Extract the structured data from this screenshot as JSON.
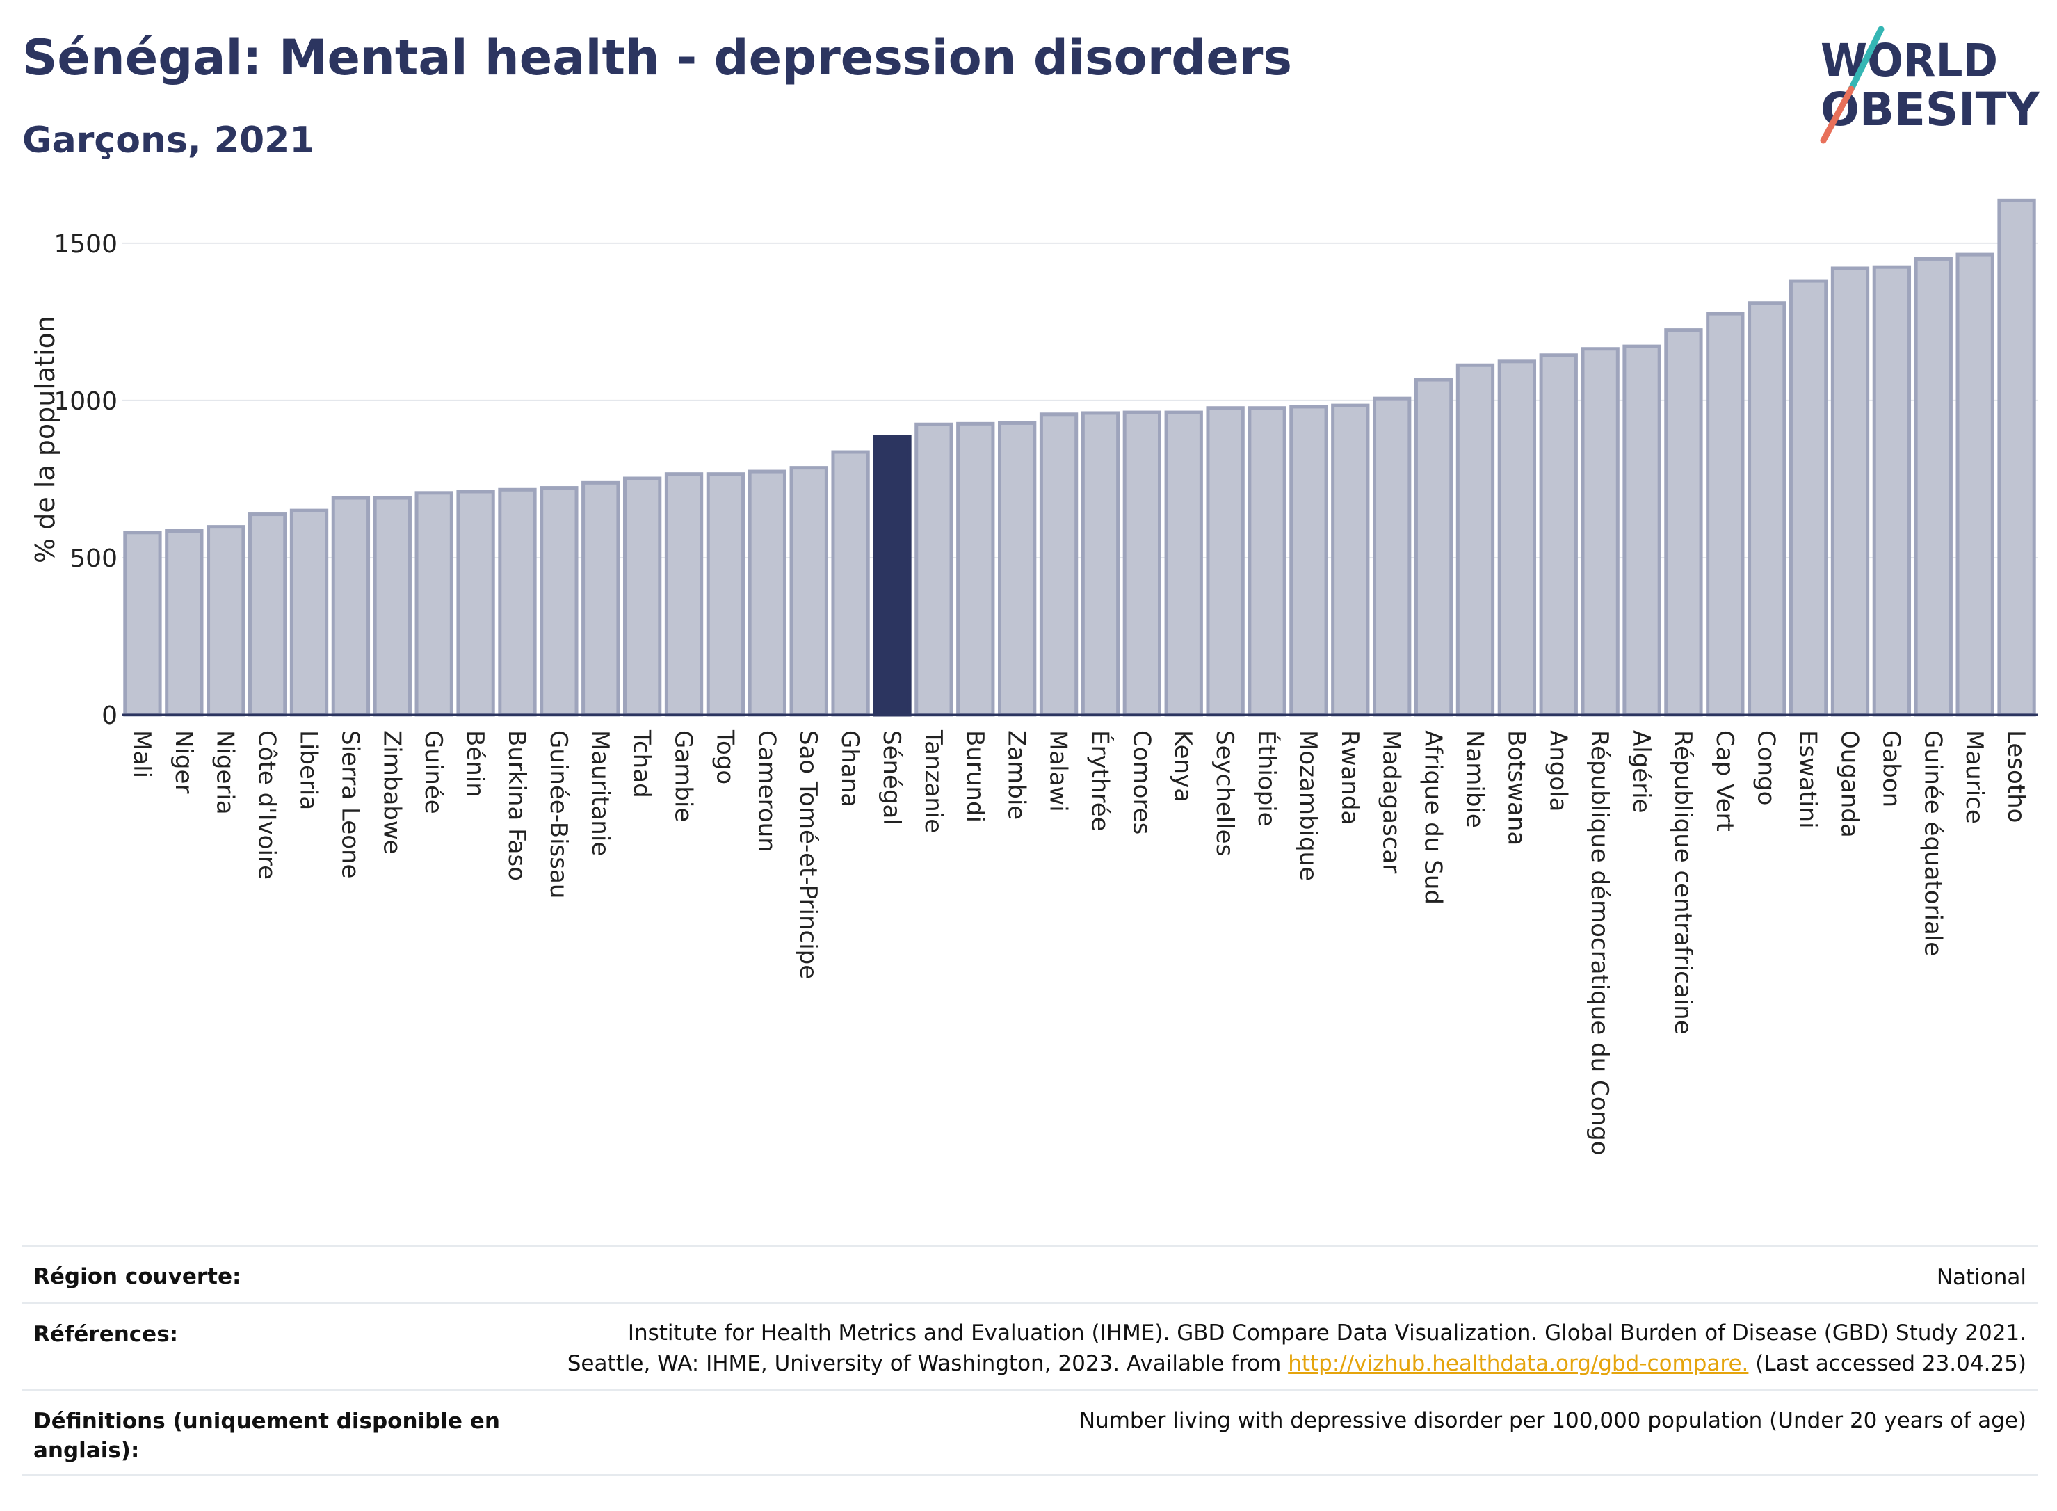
{
  "header": {
    "title": "Sénégal: Mental health - depression disorders",
    "subtitle": "Garçons, 2021",
    "logo_text": "WORLD OBESITY"
  },
  "colors": {
    "bar": "#c0c4d2",
    "bar_edge": "#9ea4bc",
    "highlight": "#2c3560",
    "title": "#2c3560",
    "link": "#e5a40c"
  },
  "chart_data": {
    "type": "bar",
    "ylabel": "% de la population",
    "ylim": [
      0,
      1650
    ],
    "yticks": [
      0,
      500,
      1000,
      1500
    ],
    "grid": true,
    "highlight": "Sénégal",
    "categories": [
      "Mali",
      "Niger",
      "Nigeria",
      "Côte d'Ivoire",
      "Liberia",
      "Sierra Leone",
      "Zimbabwe",
      "Guinée",
      "Bénin",
      "Burkina Faso",
      "Guinée-Bissau",
      "Mauritanie",
      "Tchad",
      "Gambie",
      "Togo",
      "Cameroun",
      "Sao Tomé-et-Principe",
      "Ghana",
      "Sénégal",
      "Tanzanie",
      "Burundi",
      "Zambie",
      "Malawi",
      "Érythrée",
      "Comores",
      "Kenya",
      "Seychelles",
      "Éthiopie",
      "Mozambique",
      "Rwanda",
      "Madagascar",
      "Afrique du Sud",
      "Namibie",
      "Botswana",
      "Angola",
      "République démocratique du Congo",
      "Algérie",
      "République centrafricaine",
      "Cap Vert",
      "Congo",
      "Eswatini",
      "Ouganda",
      "Gabon",
      "Guinée équatoriale",
      "Maurice",
      "Lesotho"
    ],
    "values": [
      580,
      585,
      598,
      638,
      650,
      690,
      690,
      706,
      710,
      716,
      722,
      738,
      752,
      766,
      766,
      774,
      786,
      836,
      884,
      924,
      926,
      928,
      956,
      960,
      962,
      962,
      976,
      976,
      980,
      984,
      1006,
      1066,
      1112,
      1124,
      1144,
      1164,
      1172,
      1224,
      1276,
      1310,
      1380,
      1420,
      1424,
      1450,
      1464,
      1636
    ]
  },
  "meta": {
    "region_label": "Région couverte:",
    "region_value": "National",
    "references_label": "Références:",
    "references_line1": "Institute for Health Metrics and Evaluation (IHME). GBD Compare Data Visualization. Global Burden of Disease (GBD) Study 2021.",
    "references_line2_pre": "Seattle, WA: IHME, University of Washington, 2023. Available from ",
    "references_link": "http://vizhub.healthdata.org/gbd-compare.",
    "references_line2_post": " (Last accessed 23.04.25)",
    "definitions_label": "Définitions (uniquement disponible en anglais):",
    "definitions_value": "Number living with depressive disorder per 100,000 population (Under 20 years of age)"
  }
}
